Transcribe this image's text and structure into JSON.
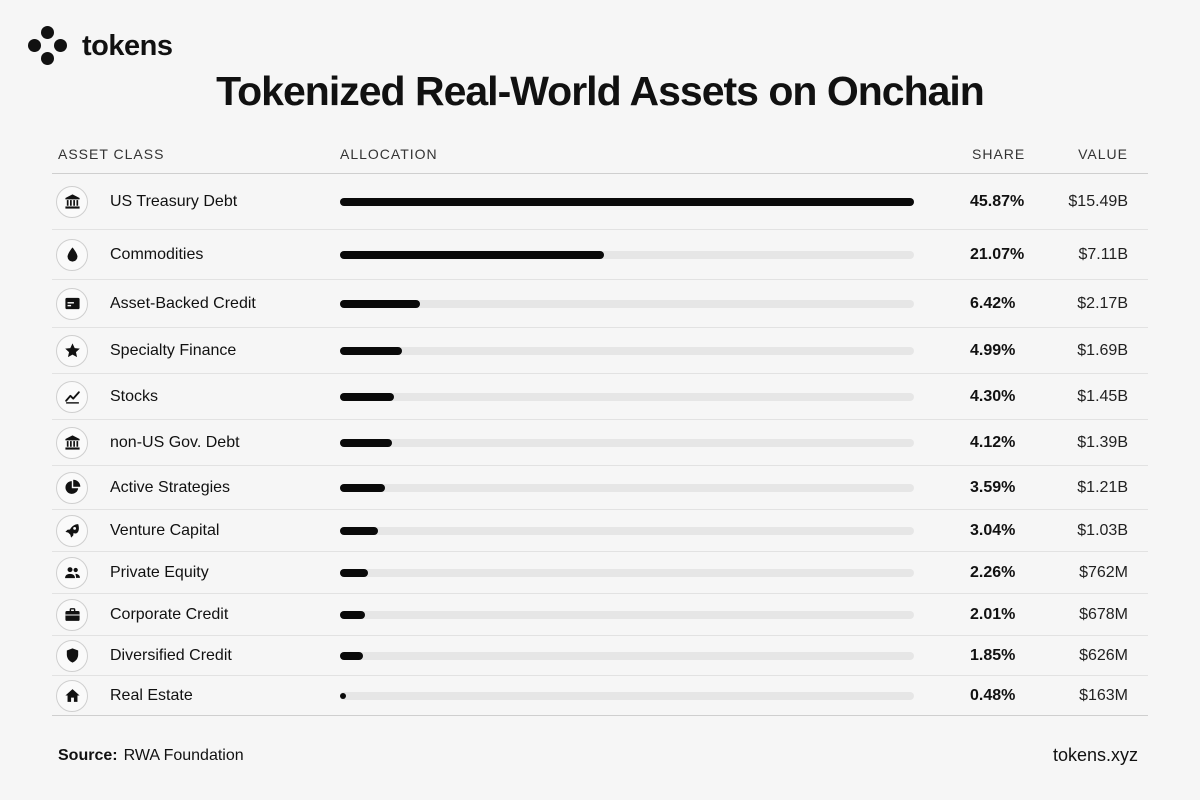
{
  "brand": {
    "name": "tokens"
  },
  "title": "Tokenized Real-World Assets on Onchain",
  "headers": {
    "asset_class": "ASSET CLASS",
    "allocation": "ALLOCATION",
    "share": "SHARE",
    "value": "VALUE"
  },
  "colors": {
    "bar": "#0a0a0a",
    "track": "#e6e6e6",
    "background": "#f6f6f6"
  },
  "chart_data": {
    "type": "bar",
    "orientation": "horizontal",
    "title": "Tokenized Real-World Assets on Onchain",
    "xmax": 45.87,
    "categories": [
      "US Treasury Debt",
      "Commodities",
      "Asset-Backed Credit",
      "Specialty Finance",
      "Stocks",
      "non-US Gov. Debt",
      "Active Strategies",
      "Venture Capital",
      "Private Equity",
      "Corporate Credit",
      "Diversified Credit",
      "Real Estate"
    ],
    "rows": [
      {
        "label": "US Treasury Debt",
        "icon": "bank-icon",
        "share": 45.87,
        "share_text": "45.87%",
        "value_text": "$15.49B"
      },
      {
        "label": "Commodities",
        "icon": "drop-icon",
        "share": 21.07,
        "share_text": "21.07%",
        "value_text": "$7.11B"
      },
      {
        "label": "Asset-Backed Credit",
        "icon": "credit-card-icon",
        "share": 6.42,
        "share_text": "6.42%",
        "value_text": "$2.17B"
      },
      {
        "label": "Specialty Finance",
        "icon": "star-icon",
        "share": 4.99,
        "share_text": "4.99%",
        "value_text": "$1.69B"
      },
      {
        "label": "Stocks",
        "icon": "trend-icon",
        "share": 4.3,
        "share_text": "4.30%",
        "value_text": "$1.45B"
      },
      {
        "label": "non-US Gov. Debt",
        "icon": "bank-icon",
        "share": 4.12,
        "share_text": "4.12%",
        "value_text": "$1.39B"
      },
      {
        "label": "Active Strategies",
        "icon": "pie-chart-icon",
        "share": 3.59,
        "share_text": "3.59%",
        "value_text": "$1.21B"
      },
      {
        "label": "Venture Capital",
        "icon": "rocket-icon",
        "share": 3.04,
        "share_text": "3.04%",
        "value_text": "$1.03B"
      },
      {
        "label": "Private Equity",
        "icon": "people-icon",
        "share": 2.26,
        "share_text": "2.26%",
        "value_text": "$762M"
      },
      {
        "label": "Corporate Credit",
        "icon": "briefcase-icon",
        "share": 2.01,
        "share_text": "2.01%",
        "value_text": "$678M"
      },
      {
        "label": "Diversified Credit",
        "icon": "shield-icon",
        "share": 1.85,
        "share_text": "1.85%",
        "value_text": "$626M"
      },
      {
        "label": "Real Estate",
        "icon": "home-icon",
        "share": 0.48,
        "share_text": "0.48%",
        "value_text": "$163M"
      }
    ]
  },
  "footer": {
    "source_label": "Source:",
    "source_value": "RWA Foundation",
    "site": "tokens.xyz"
  }
}
